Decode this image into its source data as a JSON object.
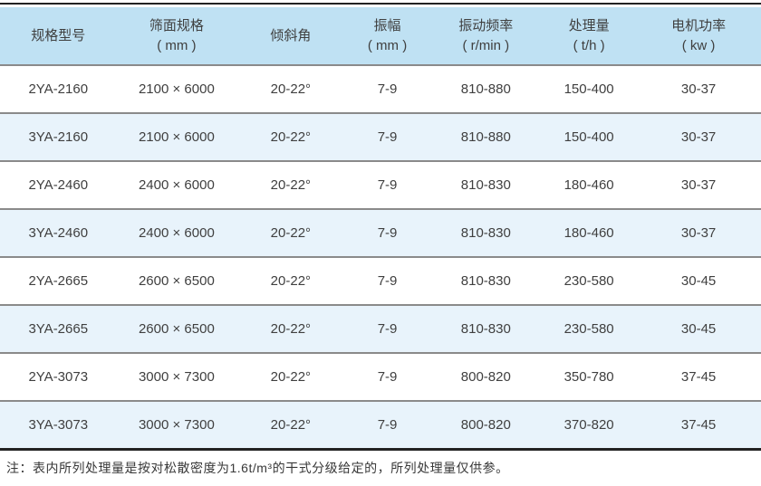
{
  "table": {
    "headers": [
      {
        "label": "规格型号",
        "unit": ""
      },
      {
        "label": "筛面规格",
        "unit": "( mm )"
      },
      {
        "label": "倾斜角",
        "unit": ""
      },
      {
        "label": "振幅",
        "unit": "( mm )"
      },
      {
        "label": "振动频率",
        "unit": "( r/min )"
      },
      {
        "label": "处理量",
        "unit": "( t/h )"
      },
      {
        "label": "电机功率",
        "unit": "( kw )"
      }
    ],
    "rows": [
      [
        "2YA-2160",
        "2100 × 6000",
        "20-22°",
        "7-9",
        "810-880",
        "150-400",
        "30-37"
      ],
      [
        "3YA-2160",
        "2100 × 6000",
        "20-22°",
        "7-9",
        "810-880",
        "150-400",
        "30-37"
      ],
      [
        "2YA-2460",
        "2400 × 6000",
        "20-22°",
        "7-9",
        "810-830",
        "180-460",
        "30-37"
      ],
      [
        "3YA-2460",
        "2400 × 6000",
        "20-22°",
        "7-9",
        "810-830",
        "180-460",
        "30-37"
      ],
      [
        "2YA-2665",
        "2600 × 6500",
        "20-22°",
        "7-9",
        "810-830",
        "230-580",
        "30-45"
      ],
      [
        "3YA-2665",
        "2600 × 6500",
        "20-22°",
        "7-9",
        "810-830",
        "230-580",
        "30-45"
      ],
      [
        "2YA-3073",
        "3000 × 7300",
        "20-22°",
        "7-9",
        "800-820",
        "350-780",
        "37-45"
      ],
      [
        "3YA-3073",
        "3000 × 7300",
        "20-22°",
        "7-9",
        "800-820",
        "370-820",
        "37-45"
      ]
    ]
  },
  "note": "注：表内所列处理量是按对松散密度为1.6t/m³的干式分级给定的，所列处理量仅供参。",
  "colors": {
    "header_bg": "#bfe1f3",
    "row_alt_bg": "#e8f3fb",
    "border_dark": "#222222",
    "border_gray": "#8a8a8a"
  }
}
